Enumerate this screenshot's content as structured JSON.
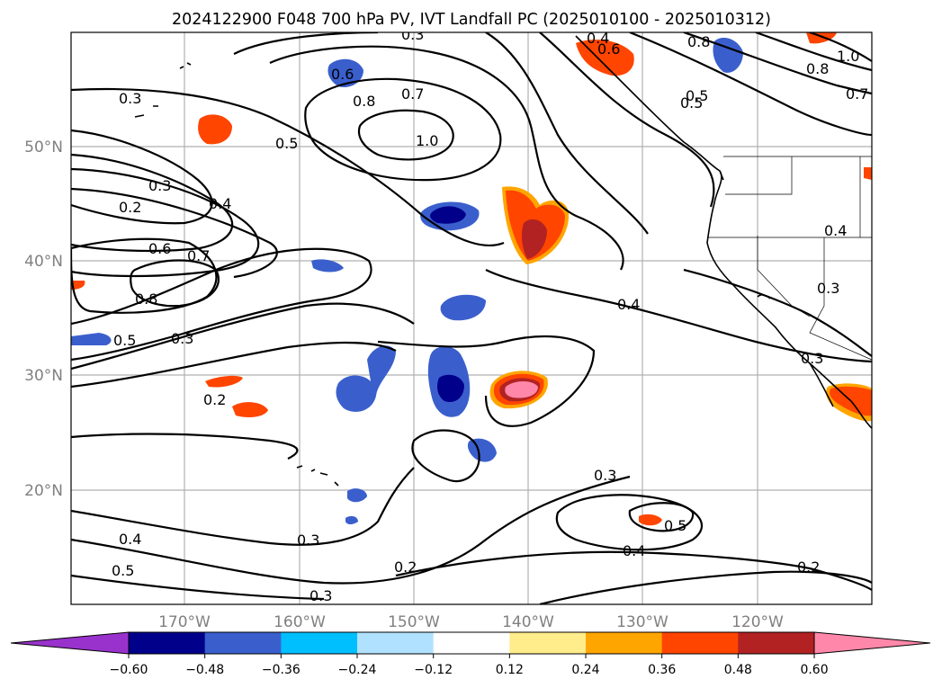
{
  "title": "2024122900 F048 700 hPa PV, IVT Landfall PC (2025010100 - 2025010312)",
  "map": {
    "lat_labels": [
      "50°N",
      "40°N",
      "30°N",
      "20°N"
    ],
    "lon_labels": [
      "170°W",
      "160°W",
      "150°W",
      "140°W",
      "130°W",
      "120°W"
    ],
    "contour_labels": [
      "0.3",
      "0.2",
      "0.3",
      "0.4",
      "0.5",
      "0.6",
      "0.8",
      "0.7",
      "1.0",
      "0.6",
      "0.7",
      "0.8",
      "0.5",
      "0.3",
      "0.2",
      "0.4",
      "0.3",
      "0.3",
      "0.4",
      "0.5",
      "0.3",
      "0.2",
      "0.3",
      "0.5",
      "0.4",
      "0.2",
      "0.3",
      "0.4",
      "0.5",
      "0.3",
      "0.4",
      "0.8",
      "0.8",
      "1.0",
      "0.7",
      "0.5",
      "0.6"
    ]
  },
  "colorbar": {
    "ticks": [
      "−0.60",
      "−0.48",
      "−0.36",
      "−0.24",
      "−0.12",
      "0.12",
      "0.24",
      "0.36",
      "0.48",
      "0.60"
    ],
    "colors": [
      "#9932cc",
      "#00008b",
      "#3a5fcd",
      "#00bfff",
      "#b0e2ff",
      "#ffffff",
      "#ffec8b",
      "#ffa500",
      "#ff4500",
      "#b22222",
      "#ff88aa"
    ]
  },
  "chart_data": {
    "type": "heatmap",
    "description_fields": {
      "contours": "700 hPa PV",
      "shading": "IVT Landfall PC"
    },
    "lon_range": [
      "180°W",
      "110°W"
    ],
    "lat_range": [
      "10°N",
      "60°N"
    ],
    "colorbar_levels": [
      -0.6,
      -0.48,
      -0.36,
      -0.24,
      -0.12,
      0.12,
      0.24,
      0.36,
      0.48,
      0.6
    ],
    "contour_levels": [
      0.2,
      0.3,
      0.4,
      0.5,
      0.6,
      0.7,
      0.8,
      1.0
    ]
  }
}
